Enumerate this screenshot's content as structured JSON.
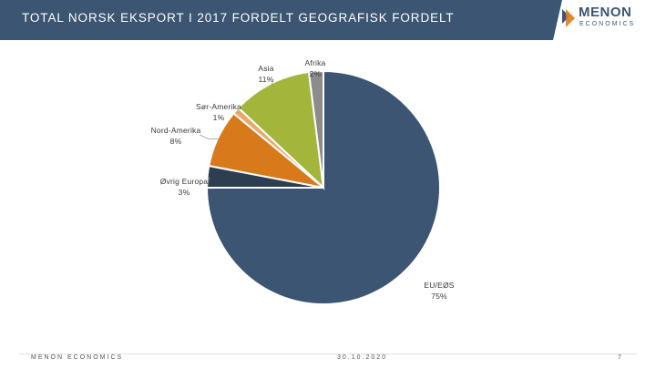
{
  "header": {
    "title": "TOTAL NORSK EKSPORT I 2017 FORDELT GEOGRAFISK FORDELT"
  },
  "logo": {
    "name": "MENON",
    "sub": "ECONOMICS"
  },
  "footer": {
    "left": "MENON ECONOMICS",
    "center": "30.10.2020",
    "right": "7"
  },
  "colors": {
    "header_bg": "#3b5573",
    "logo_bg": "#ffffff",
    "logo_accent": "#e07b1c"
  },
  "chart_data": {
    "type": "pie",
    "title": "",
    "slices": [
      {
        "name": "EU/EØS",
        "value": 75,
        "label": "75%",
        "color": "#3b5573"
      },
      {
        "name": "Øvrig Europa",
        "value": 3,
        "label": "3%",
        "color": "#2c3e50"
      },
      {
        "name": "Nord-Amerika",
        "value": 8,
        "label": "8%",
        "color": "#d87a1c"
      },
      {
        "name": "Sør-Amerika",
        "value": 1,
        "label": "1%",
        "color": "#e9a96a"
      },
      {
        "name": "Asia",
        "value": 11,
        "label": "11%",
        "color": "#a4b53c"
      },
      {
        "name": "Afrika",
        "value": 2,
        "label": "2%",
        "color": "#8c8c8c"
      }
    ],
    "start": "12 o'clock",
    "direction": "clockwise",
    "legend": "none",
    "data_labels": "outside with leader lines"
  }
}
